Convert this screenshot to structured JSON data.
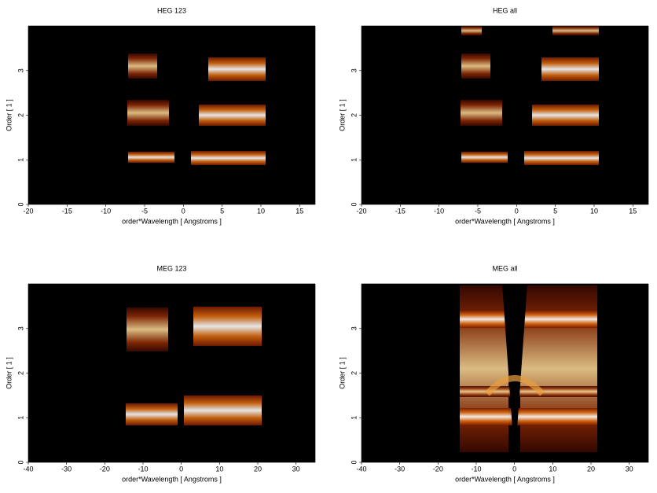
{
  "chart_data": [
    {
      "type": "image",
      "title": "HEG 123",
      "x_label": "order*Wavelength [ Angstroms ]",
      "y_label": "Order [ 1 ]",
      "xlim": [
        -20,
        17
      ],
      "xticks": [
        -20,
        -15,
        -10,
        -5,
        0,
        5,
        10,
        15
      ],
      "ylim": [
        0,
        4
      ],
      "yticks": [
        0,
        1,
        2,
        3
      ]
    },
    {
      "type": "image",
      "title": "HEG all",
      "x_label": "order*Wavelength [ Angstroms ]",
      "y_label": "Order [ 1 ]",
      "xlim": [
        -20,
        17
      ],
      "xticks": [
        -20,
        -15,
        -10,
        -5,
        0,
        5,
        10,
        15
      ],
      "ylim": [
        0,
        4
      ],
      "yticks": [
        0,
        1,
        2,
        3
      ]
    },
    {
      "type": "image",
      "title": "MEG 123",
      "x_label": "order*Wavelength [ Angstroms ]",
      "y_label": "Order [ 1 ]",
      "xlim": [
        -40,
        35
      ],
      "xticks": [
        -40,
        -30,
        -20,
        -10,
        0,
        10,
        20,
        30
      ],
      "ylim": [
        0,
        4
      ],
      "yticks": [
        0,
        1,
        2,
        3
      ]
    },
    {
      "type": "image",
      "title": "MEG all",
      "x_label": "order*Wavelength [ Angstroms ]",
      "y_label": "Order [ 1 ]",
      "xlim": [
        -40,
        35
      ],
      "xticks": [
        -40,
        -30,
        -20,
        -10,
        0,
        10,
        20,
        30
      ],
      "ylim": [
        0,
        4
      ],
      "yticks": [
        0,
        1,
        2,
        3
      ]
    }
  ]
}
